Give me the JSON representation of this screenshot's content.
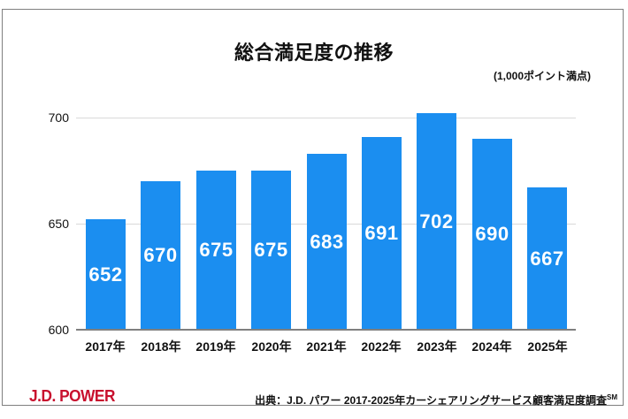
{
  "chart_data": {
    "type": "bar",
    "title": "総合満足度の推移",
    "subtitle": "(1,000ポイント満点)",
    "categories": [
      "2017年",
      "2018年",
      "2019年",
      "2020年",
      "2021年",
      "2022年",
      "2023年",
      "2024年",
      "2025年"
    ],
    "values": [
      652,
      670,
      675,
      675,
      683,
      691,
      702,
      690,
      667
    ],
    "ylim": [
      600,
      710
    ],
    "yticks": [
      600,
      650,
      700
    ],
    "grid": "horizontal-light",
    "legend": "none",
    "value_label_position": "inside-center",
    "bar_color": "#1b8ef0",
    "value_label_color": "#ffffff",
    "gridline_color": "#d9d9d9",
    "axis_color": "#7f7f7f"
  },
  "footer": {
    "logo_text": "J.D. POWER",
    "logo_color": "#c8102e",
    "source_text": "出典：J.D. パワー 2017-2025年カーシェアリングサービス顧客満足度調査",
    "source_superscript": "SM"
  }
}
